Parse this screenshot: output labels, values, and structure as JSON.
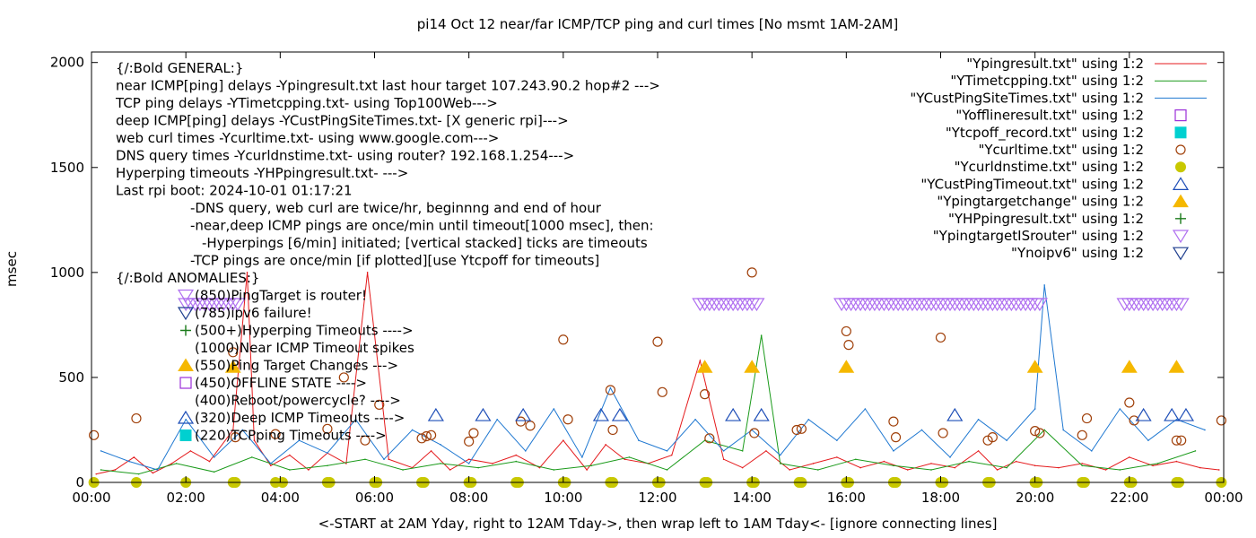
{
  "chart_data": {
    "type": "line",
    "title": "pi14 Oct 12  near/far ICMP/TCP ping and curl times [No msmt 1AM-2AM]",
    "xlabel": "<-START at 2AM Yday, right to 12AM Tday->, then wrap left to 1AM Tday<- [ignore connecting lines]",
    "ylabel": "msec",
    "xlim": [
      0,
      24
    ],
    "ylim": [
      0,
      2050
    ],
    "x_ticks": [
      {
        "value": 0,
        "label": "00:00"
      },
      {
        "value": 2,
        "label": "02:00"
      },
      {
        "value": 4,
        "label": "04:00"
      },
      {
        "value": 6,
        "label": "06:00"
      },
      {
        "value": 8,
        "label": "08:00"
      },
      {
        "value": 10,
        "label": "10:00"
      },
      {
        "value": 12,
        "label": "12:00"
      },
      {
        "value": 14,
        "label": "14:00"
      },
      {
        "value": 16,
        "label": "16:00"
      },
      {
        "value": 18,
        "label": "18:00"
      },
      {
        "value": 20,
        "label": "20:00"
      },
      {
        "value": 22,
        "label": "22:00"
      },
      {
        "value": 24,
        "label": "00:00"
      }
    ],
    "y_ticks": [
      {
        "value": 0,
        "label": "0"
      },
      {
        "value": 500,
        "label": "500"
      },
      {
        "value": 1000,
        "label": "1000"
      },
      {
        "value": 1500,
        "label": "1500"
      },
      {
        "value": 2000,
        "label": "2000"
      }
    ],
    "grid": false,
    "legend_placement": "top-right",
    "annotations": [
      "{/:Bold GENERAL:}",
      "near ICMP[ping] delays -Ypingresult.txt last hour target 107.243.90.2 hop#2 --->",
      "TCP ping delays -YTimetcpping.txt- using Top100Web--->",
      "deep ICMP[ping] delays -YCustPingSiteTimes.txt- [X generic rpi]--->",
      "web curl times -Ycurltime.txt- using www.google.com--->",
      "DNS query times -Ycurldnstime.txt- using router? 192.168.1.254--->",
      "Hyperping timeouts -YHPpingresult.txt- --->",
      "Last rpi boot: 2024-10-01 01:17:21",
      "-DNS query, web curl are twice/hr, beginnng and end of hour",
      "-near,deep ICMP pings are once/min until timeout[1000 msec], then:",
      "-Hyperpings [6/min] initiated; [vertical stacked] ticks are timeouts",
      "-TCP pings are once/min [if plotted][use Ytcpoff for timeouts]",
      "{/:Bold ANOMALIES:}",
      "(850)PingTarget is router!",
      "(785)ipv6 failure!",
      "(500+)Hyperping Timeouts ---->",
      "(1000)Near ICMP Timeout spikes",
      "(550)Ping Target Changes --->",
      "(450)OFFLINE STATE ---->",
      "(400)Reboot/powercycle? ---->",
      "(320)Deep ICMP Timeouts ---->",
      "(220)TCPping Timeouts ---->"
    ],
    "series": [
      {
        "name": "\"Ypingresult.txt\" using 1:2",
        "style": "line",
        "color": "#e41a1c",
        "x": [
          0.1,
          0.5,
          0.9,
          1.3,
          1.7,
          2.1,
          2.5,
          3.0,
          3.3,
          3.45,
          3.8,
          4.2,
          4.6,
          5.0,
          5.4,
          5.85,
          6.3,
          6.8,
          7.2,
          7.6,
          8.0,
          8.5,
          9.0,
          9.5,
          10.0,
          10.5,
          10.9,
          11.3,
          11.8,
          12.3,
          12.9,
          13.4,
          13.8,
          14.3,
          14.8,
          15.3,
          15.8,
          16.3,
          16.8,
          17.3,
          17.8,
          18.3,
          18.8,
          19.2,
          19.6,
          20.0,
          20.5,
          21.0,
          21.5,
          22.0,
          22.5,
          23.0,
          23.5,
          23.9
        ],
        "y": [
          40,
          60,
          120,
          45,
          90,
          150,
          100,
          250,
          1000,
          200,
          80,
          130,
          60,
          140,
          90,
          1000,
          110,
          70,
          150,
          60,
          110,
          90,
          130,
          70,
          200,
          60,
          180,
          110,
          90,
          130,
          580,
          110,
          70,
          150,
          60,
          90,
          120,
          70,
          100,
          60,
          90,
          70,
          150,
          60,
          100,
          80,
          70,
          90,
          60,
          120,
          80,
          100,
          70,
          60
        ]
      },
      {
        "name": "\"YTimetcpping.txt\" using 1:2",
        "style": "line",
        "color": "#1a9a1a",
        "x": [
          0.2,
          1.0,
          1.8,
          2.6,
          3.4,
          4.2,
          5.0,
          5.8,
          6.6,
          7.4,
          8.2,
          9.0,
          9.8,
          10.6,
          11.4,
          12.2,
          13.0,
          13.8,
          14.2,
          14.6,
          15.4,
          16.2,
          17.0,
          17.8,
          18.6,
          19.4,
          20.2,
          21.0,
          21.8,
          22.6,
          23.4
        ],
        "y": [
          60,
          40,
          90,
          50,
          120,
          60,
          80,
          110,
          60,
          90,
          70,
          100,
          60,
          80,
          120,
          60,
          200,
          150,
          700,
          90,
          60,
          110,
          80,
          60,
          100,
          70,
          250,
          80,
          60,
          90,
          150
        ]
      },
      {
        "name": "\"YCustPingSiteTimes.txt\" using 1:2",
        "style": "line",
        "color": "#1f78d1",
        "x": [
          0.2,
          0.8,
          1.4,
          2.0,
          2.6,
          3.2,
          3.8,
          4.4,
          5.0,
          5.6,
          6.2,
          6.8,
          7.4,
          8.0,
          8.6,
          9.2,
          9.8,
          10.4,
          11.0,
          11.6,
          12.2,
          12.8,
          13.4,
          14.0,
          14.6,
          15.2,
          15.8,
          16.4,
          17.0,
          17.6,
          18.2,
          18.8,
          19.4,
          20.0,
          20.2,
          20.6,
          21.2,
          21.8,
          22.4,
          23.0,
          23.6
        ],
        "y": [
          150,
          100,
          60,
          300,
          120,
          250,
          90,
          200,
          140,
          300,
          110,
          250,
          180,
          90,
          300,
          150,
          350,
          120,
          450,
          200,
          150,
          300,
          150,
          250,
          130,
          300,
          200,
          350,
          150,
          250,
          120,
          300,
          200,
          350,
          940,
          250,
          150,
          350,
          200,
          300,
          250
        ]
      },
      {
        "name": "\"Yofflineresult.txt\" using 1:2",
        "style": "points",
        "marker": "open-square",
        "color": "#9b30d9",
        "x": [],
        "y": []
      },
      {
        "name": "\"Ytcpoff_record.txt\" using 1:2",
        "style": "points",
        "marker": "filled-square",
        "color": "#00d0d0",
        "x": [],
        "y": []
      },
      {
        "name": "\"Ycurltime.txt\" using 1:2",
        "style": "points",
        "marker": "open-circle",
        "color": "#a0400a",
        "x": [
          0.05,
          0.95,
          3.0,
          3.05,
          3.9,
          5.0,
          5.35,
          5.8,
          6.1,
          7.0,
          7.1,
          7.2,
          8.0,
          8.1,
          9.1,
          9.3,
          10.0,
          10.1,
          11.0,
          11.05,
          12.0,
          12.1,
          13.0,
          13.1,
          14.0,
          14.05,
          14.95,
          15.05,
          16.0,
          16.05,
          17.0,
          17.05,
          18.0,
          18.05,
          19.0,
          19.1,
          20.0,
          20.1,
          21.0,
          21.1,
          22.0,
          22.1,
          23.0,
          23.1,
          23.95
        ],
        "y": [
          225,
          305,
          620,
          215,
          230,
          255,
          500,
          200,
          370,
          210,
          220,
          225,
          195,
          235,
          290,
          270,
          680,
          300,
          440,
          250,
          670,
          430,
          420,
          210,
          1000,
          235,
          250,
          255,
          720,
          655,
          290,
          215,
          690,
          235,
          200,
          215,
          245,
          235,
          225,
          305,
          380,
          295,
          200,
          200,
          295
        ]
      },
      {
        "name": "\"Ycurldnstime.txt\" using 1:2",
        "style": "points",
        "marker": "filled-circle",
        "color": "#c8c800",
        "x": [
          0.05,
          0.95,
          2.0,
          3.0,
          3.05,
          3.9,
          4.05,
          5.0,
          5.05,
          6.0,
          6.05,
          7.0,
          7.05,
          8.0,
          8.05,
          9.0,
          9.05,
          10.0,
          10.05,
          11.0,
          11.05,
          12.0,
          12.05,
          13.0,
          13.05,
          14.0,
          14.05,
          15.0,
          15.05,
          16.0,
          16.05,
          17.0,
          17.05,
          18.0,
          18.05,
          19.0,
          19.05,
          20.0,
          20.05,
          21.0,
          21.05,
          22.0,
          22.05,
          23.0,
          23.05,
          23.95
        ],
        "y": [
          0,
          0,
          0,
          0,
          0,
          0,
          0,
          0,
          0,
          0,
          0,
          0,
          0,
          0,
          0,
          0,
          0,
          0,
          0,
          0,
          0,
          0,
          0,
          0,
          0,
          0,
          0,
          0,
          0,
          0,
          0,
          0,
          0,
          0,
          0,
          0,
          0,
          0,
          0,
          0,
          0,
          0,
          0,
          0,
          0,
          0
        ]
      },
      {
        "name": "\"YCustPingTimeout.txt\" using 1:2",
        "style": "points",
        "marker": "open-triangle-up",
        "color": "#1f4fb8",
        "x": [
          7.3,
          8.3,
          9.15,
          10.8,
          11.2,
          13.6,
          14.2,
          18.3,
          22.3,
          22.9,
          23.2
        ],
        "y": [
          320,
          320,
          320,
          320,
          320,
          320,
          320,
          320,
          320,
          320,
          320
        ]
      },
      {
        "name": "\"Ypingtargetchange\" using 1:2",
        "style": "points",
        "marker": "filled-triangle-up",
        "color": "#f5b800",
        "x": [
          3.0,
          13.0,
          14.0,
          16.0,
          20.0,
          22.0,
          23.0
        ],
        "y": [
          550,
          550,
          550,
          550,
          550,
          550,
          550
        ]
      },
      {
        "name": "\"YHPpingresult.txt\" using 1:2",
        "style": "points",
        "marker": "plus",
        "color": "#1a7a1a",
        "x": [],
        "y": []
      },
      {
        "name": "\"YpingtargetISrouter\" using 1:2",
        "style": "points",
        "marker": "open-triangle-down",
        "color": "#b070f0",
        "ranges": [
          [
            2.0,
            3.1
          ],
          [
            12.9,
            14.1
          ],
          [
            15.9,
            20.1
          ],
          [
            21.9,
            23.1
          ]
        ],
        "y_value": 850
      },
      {
        "name": "\"Ynoipv6\" using 1:2",
        "style": "points",
        "marker": "open-triangle-down",
        "color": "#1f3f8f",
        "x": [],
        "y": []
      }
    ]
  }
}
